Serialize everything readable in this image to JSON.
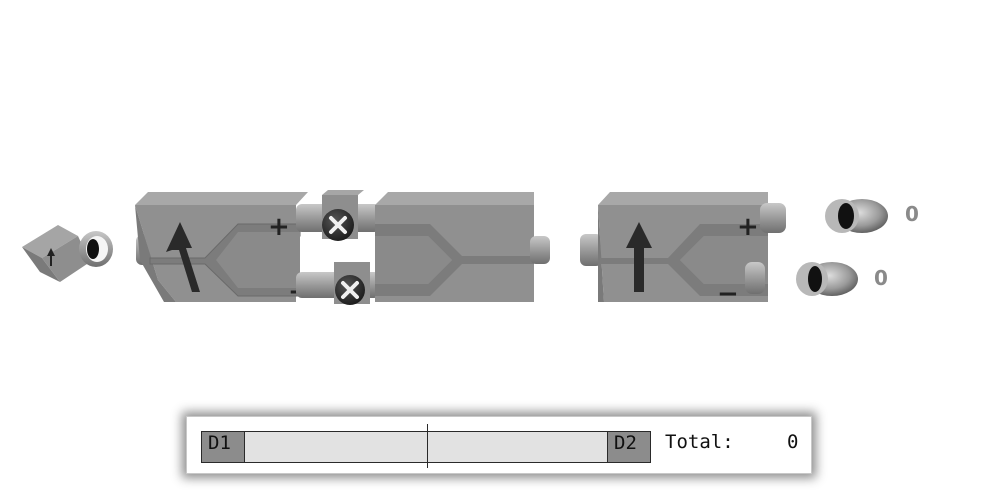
{
  "apparatus": {
    "source_arrow_icon": "up-arrow-icon",
    "stage1": {
      "plus_label": "+",
      "minus_label": "−",
      "direction_icon": "up-arrow-icon"
    },
    "stage2": {
      "plus_label": "+",
      "minus_label": "−",
      "direction_icon": "up-arrow-icon"
    },
    "connector_icons": [
      "close-icon",
      "close-icon"
    ],
    "detector_plus_count": "0",
    "detector_minus_count": "0"
  },
  "stats": {
    "d1_label": "D1",
    "d2_label": "D2",
    "total_label": "Total:",
    "total_value": "0"
  },
  "colors": {
    "box_face": "#8f8f8f",
    "box_top": "#a9a9a9",
    "box_side": "#6e6e6e",
    "bar_fill": "#e2e2e2",
    "label_fill": "#8c8c8c"
  }
}
